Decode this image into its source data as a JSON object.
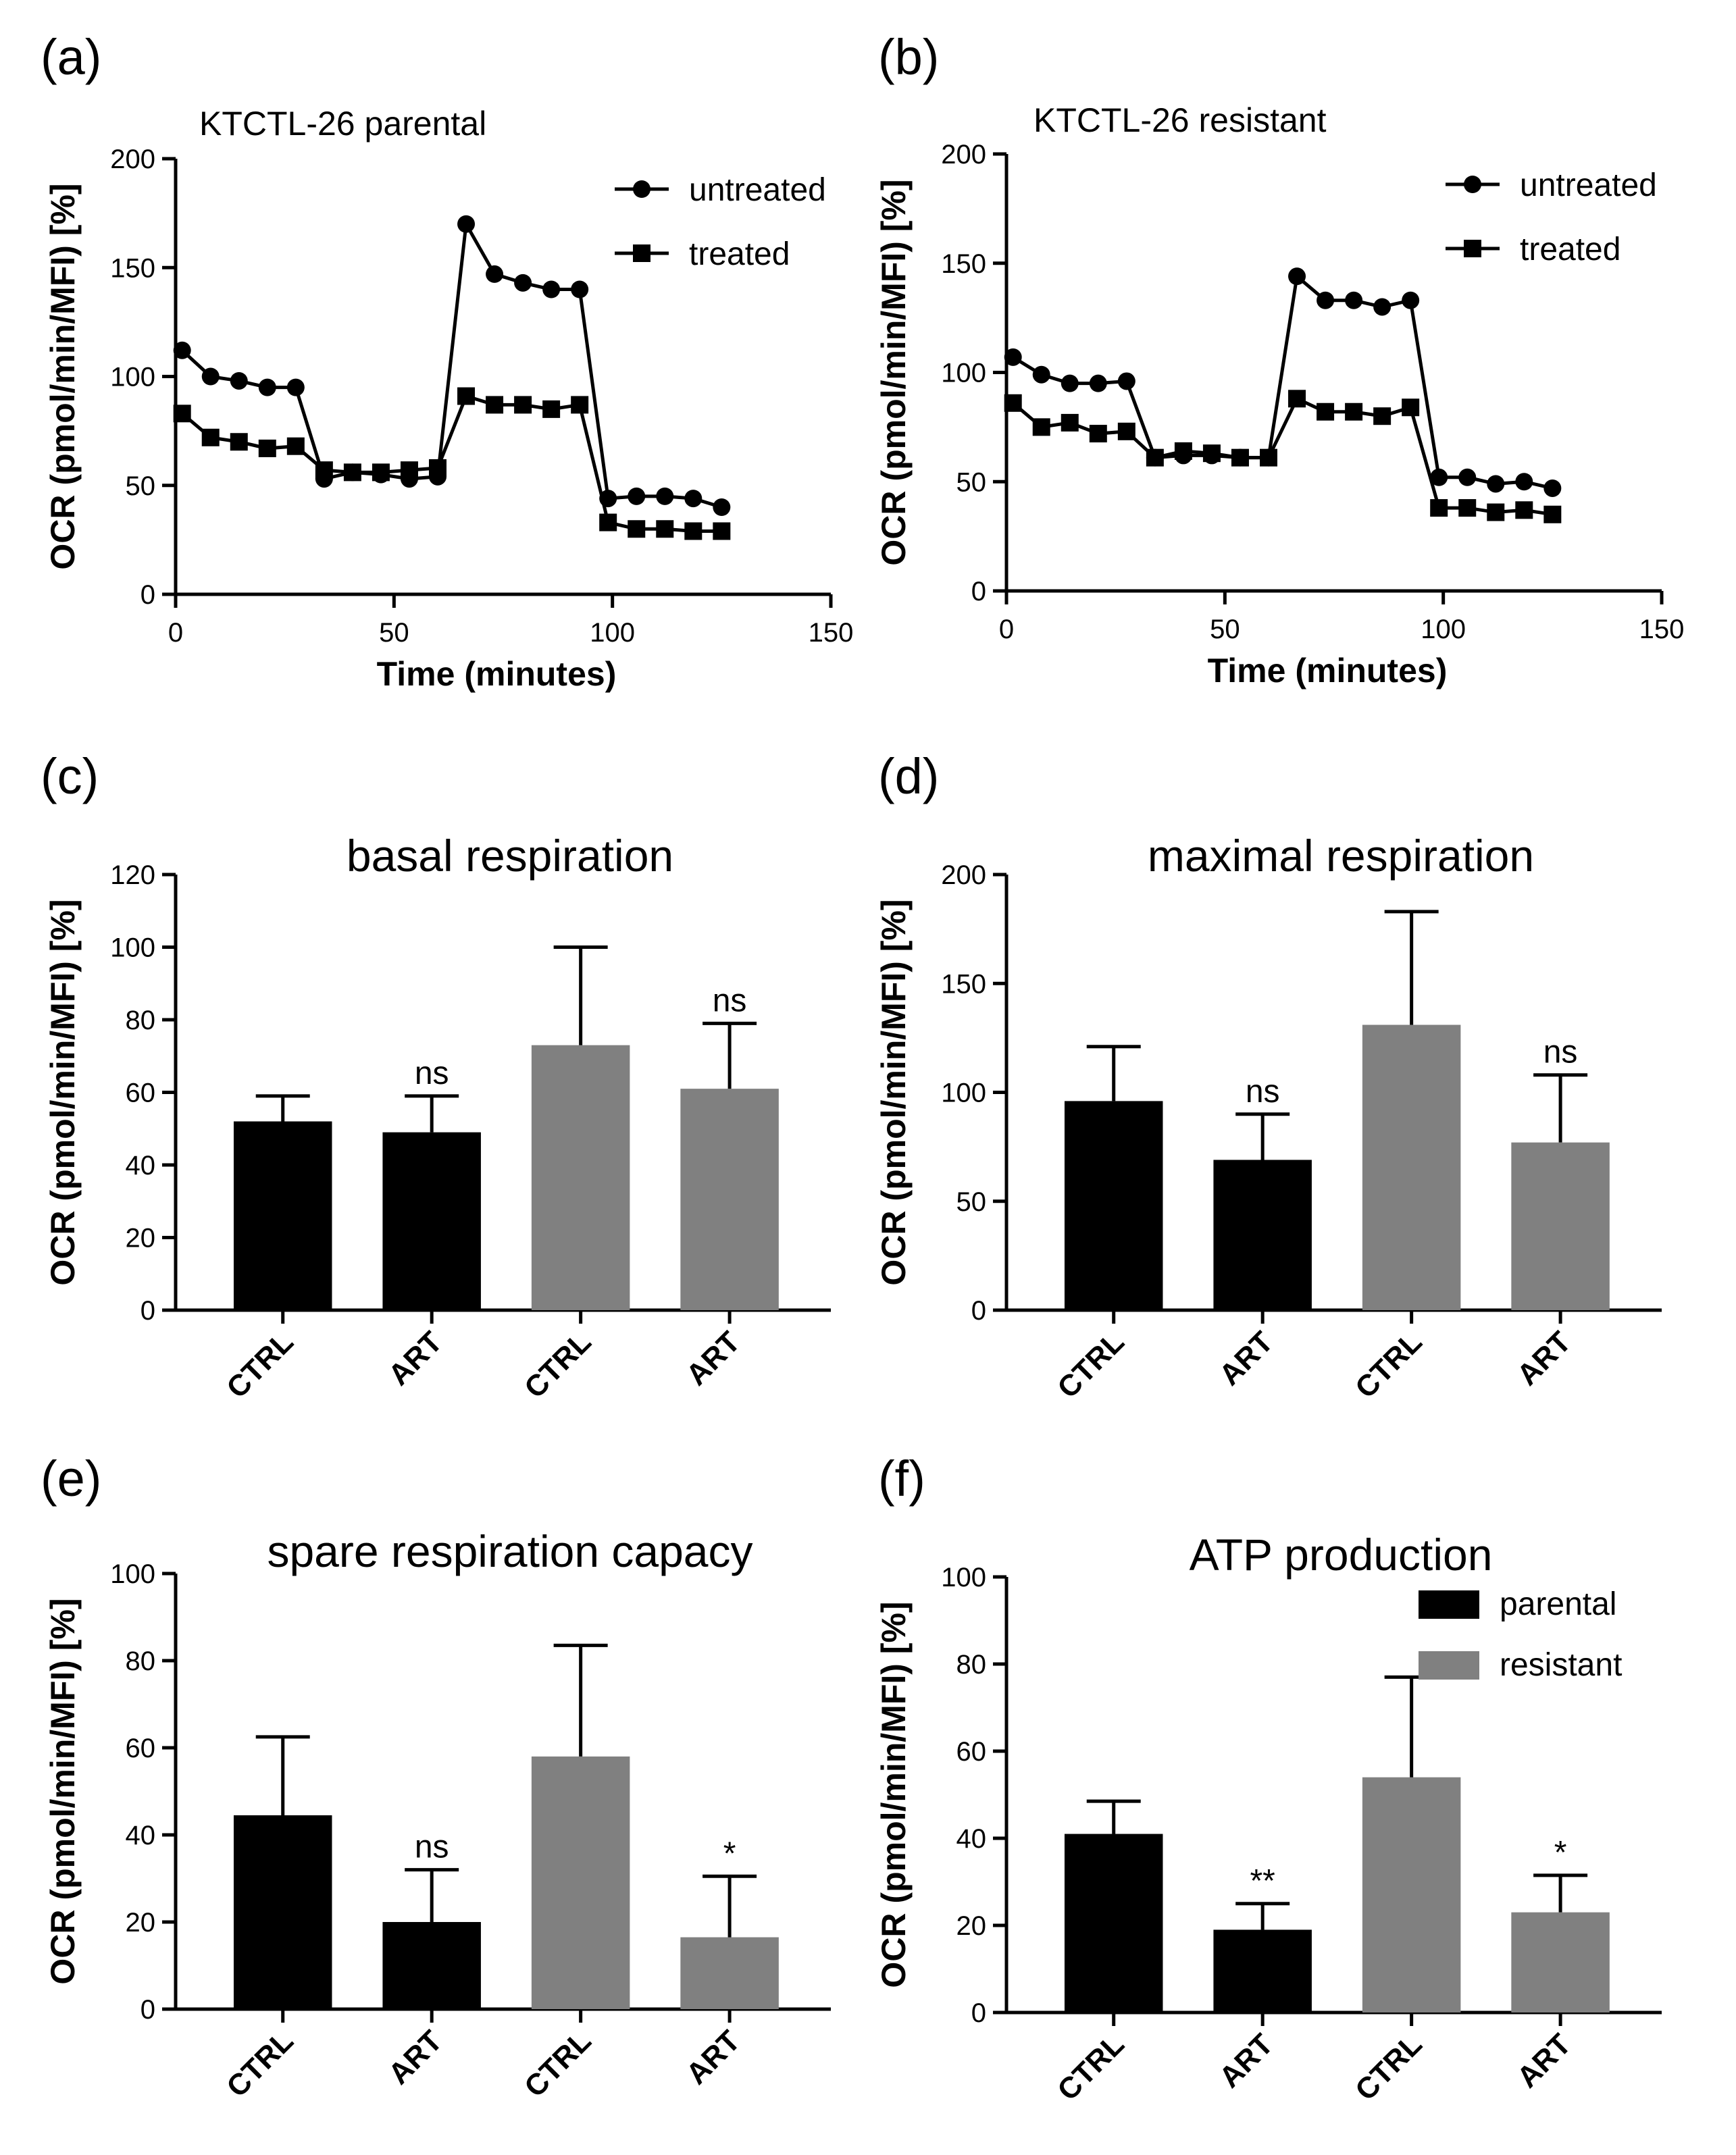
{
  "colors": {
    "parental": "#000000",
    "resistant": "#808080",
    "axis": "#000000"
  },
  "chart_data": [
    {
      "id": "a",
      "type": "line",
      "panel_label": "(a)",
      "subtitle": "KTCTL-26 parental",
      "xlabel": "Time (minutes)",
      "ylabel": "OCR (pmol/min/MFI) [%]",
      "xlim": [
        0,
        150
      ],
      "ylim": [
        0,
        200
      ],
      "xticks": [
        0,
        50,
        100,
        150
      ],
      "yticks": [
        0,
        50,
        100,
        150,
        200
      ],
      "legend_position": "top-right",
      "series": [
        {
          "name": "untreated",
          "marker": "circle",
          "x": [
            1.5,
            8,
            14.5,
            21,
            27.5,
            34,
            40.5,
            47,
            53.5,
            60,
            66.5,
            73,
            79.5,
            86,
            92.5,
            99,
            105.5,
            112,
            118.5,
            125
          ],
          "y": [
            112,
            100,
            98,
            95,
            95,
            53,
            56,
            55,
            53,
            54,
            170,
            147,
            143,
            140,
            140,
            44,
            45,
            45,
            44,
            40
          ]
        },
        {
          "name": "treated",
          "marker": "square",
          "x": [
            1.5,
            8,
            14.5,
            21,
            27.5,
            34,
            40.5,
            47,
            53.5,
            60,
            66.5,
            73,
            79.5,
            86,
            92.5,
            99,
            105.5,
            112,
            118.5,
            125
          ],
          "y": [
            83,
            72,
            70,
            67,
            68,
            57,
            56,
            56,
            57,
            58,
            91,
            87,
            87,
            85,
            87,
            33,
            30,
            30,
            29,
            29
          ]
        }
      ]
    },
    {
      "id": "b",
      "type": "line",
      "panel_label": "(b)",
      "subtitle": "KTCTL-26 resistant",
      "xlabel": "Time (minutes)",
      "ylabel": "OCR (pmol/min/MFI) [%]",
      "xlim": [
        0,
        150
      ],
      "ylim": [
        0,
        200
      ],
      "xticks": [
        0,
        50,
        100,
        150
      ],
      "yticks": [
        0,
        50,
        100,
        150,
        200
      ],
      "legend_position": "top-right",
      "series": [
        {
          "name": "untreated",
          "marker": "circle",
          "x": [
            1.5,
            8,
            14.5,
            21,
            27.5,
            34,
            40.5,
            47,
            53.5,
            60,
            66.5,
            73,
            79.5,
            86,
            92.5,
            99,
            105.5,
            112,
            118.5,
            125
          ],
          "y": [
            107,
            99,
            95,
            95,
            96,
            61,
            62,
            62,
            61,
            61,
            144,
            133,
            133,
            130,
            133,
            52,
            52,
            49,
            50,
            47
          ]
        },
        {
          "name": "treated",
          "marker": "square",
          "x": [
            1.5,
            8,
            14.5,
            21,
            27.5,
            34,
            40.5,
            47,
            53.5,
            60,
            66.5,
            73,
            79.5,
            86,
            92.5,
            99,
            105.5,
            112,
            118.5,
            125
          ],
          "y": [
            86,
            75,
            77,
            72,
            73,
            61,
            64,
            63,
            61,
            61,
            88,
            82,
            82,
            80,
            84,
            38,
            38,
            36,
            37,
            35
          ]
        }
      ]
    },
    {
      "id": "c",
      "type": "bar",
      "panel_label": "(c)",
      "title": "basal respiration",
      "ylabel": "OCR (pmol/min/MFI) [%]",
      "ylim": [
        0,
        120
      ],
      "yticks": [
        0,
        20,
        40,
        60,
        80,
        100,
        120
      ],
      "categories": [
        "CTRL",
        "ART",
        "CTRL",
        "ART"
      ],
      "groups": [
        "parental",
        "parental",
        "resistant",
        "resistant"
      ],
      "values": [
        52,
        49,
        73,
        61
      ],
      "errors": [
        7,
        10,
        27,
        18
      ],
      "annotations": [
        "",
        "ns",
        "",
        "ns"
      ]
    },
    {
      "id": "d",
      "type": "bar",
      "panel_label": "(d)",
      "title": "maximal respiration",
      "ylabel": "OCR (pmol/min/MFI) [%]",
      "ylim": [
        0,
        200
      ],
      "yticks": [
        0,
        50,
        100,
        150,
        200
      ],
      "categories": [
        "CTRL",
        "ART",
        "CTRL",
        "ART"
      ],
      "groups": [
        "parental",
        "parental",
        "resistant",
        "resistant"
      ],
      "values": [
        96,
        69,
        131,
        77
      ],
      "errors": [
        25,
        21,
        52,
        31
      ],
      "annotations": [
        "",
        "ns",
        "",
        "ns"
      ]
    },
    {
      "id": "e",
      "type": "bar",
      "panel_label": "(e)",
      "title": "spare respiration capacy",
      "ylabel": "OCR (pmol/min/MFI) [%]",
      "ylim": [
        0,
        100
      ],
      "yticks": [
        0,
        20,
        40,
        60,
        80,
        100
      ],
      "categories": [
        "CTRL",
        "ART",
        "CTRL",
        "ART"
      ],
      "groups": [
        "parental",
        "parental",
        "resistant",
        "resistant"
      ],
      "values": [
        44.5,
        20,
        58,
        16.5
      ],
      "errors": [
        18,
        12,
        25.5,
        14
      ],
      "annotations": [
        "",
        "ns",
        "",
        "*"
      ]
    },
    {
      "id": "f",
      "type": "bar",
      "panel_label": "(f)",
      "title": "ATP production",
      "ylabel": "OCR (pmol/min/MFI) [%]",
      "ylim": [
        0,
        100
      ],
      "yticks": [
        0,
        20,
        40,
        60,
        80,
        100
      ],
      "categories": [
        "CTRL",
        "ART",
        "CTRL",
        "ART"
      ],
      "groups": [
        "parental",
        "parental",
        "resistant",
        "resistant"
      ],
      "values": [
        41,
        19,
        54,
        23
      ],
      "errors": [
        7.5,
        6,
        23,
        8.5
      ],
      "annotations": [
        "",
        "**",
        "",
        "*"
      ],
      "legend": [
        "parental",
        "resistant"
      ],
      "legend_position": "top-right"
    }
  ]
}
